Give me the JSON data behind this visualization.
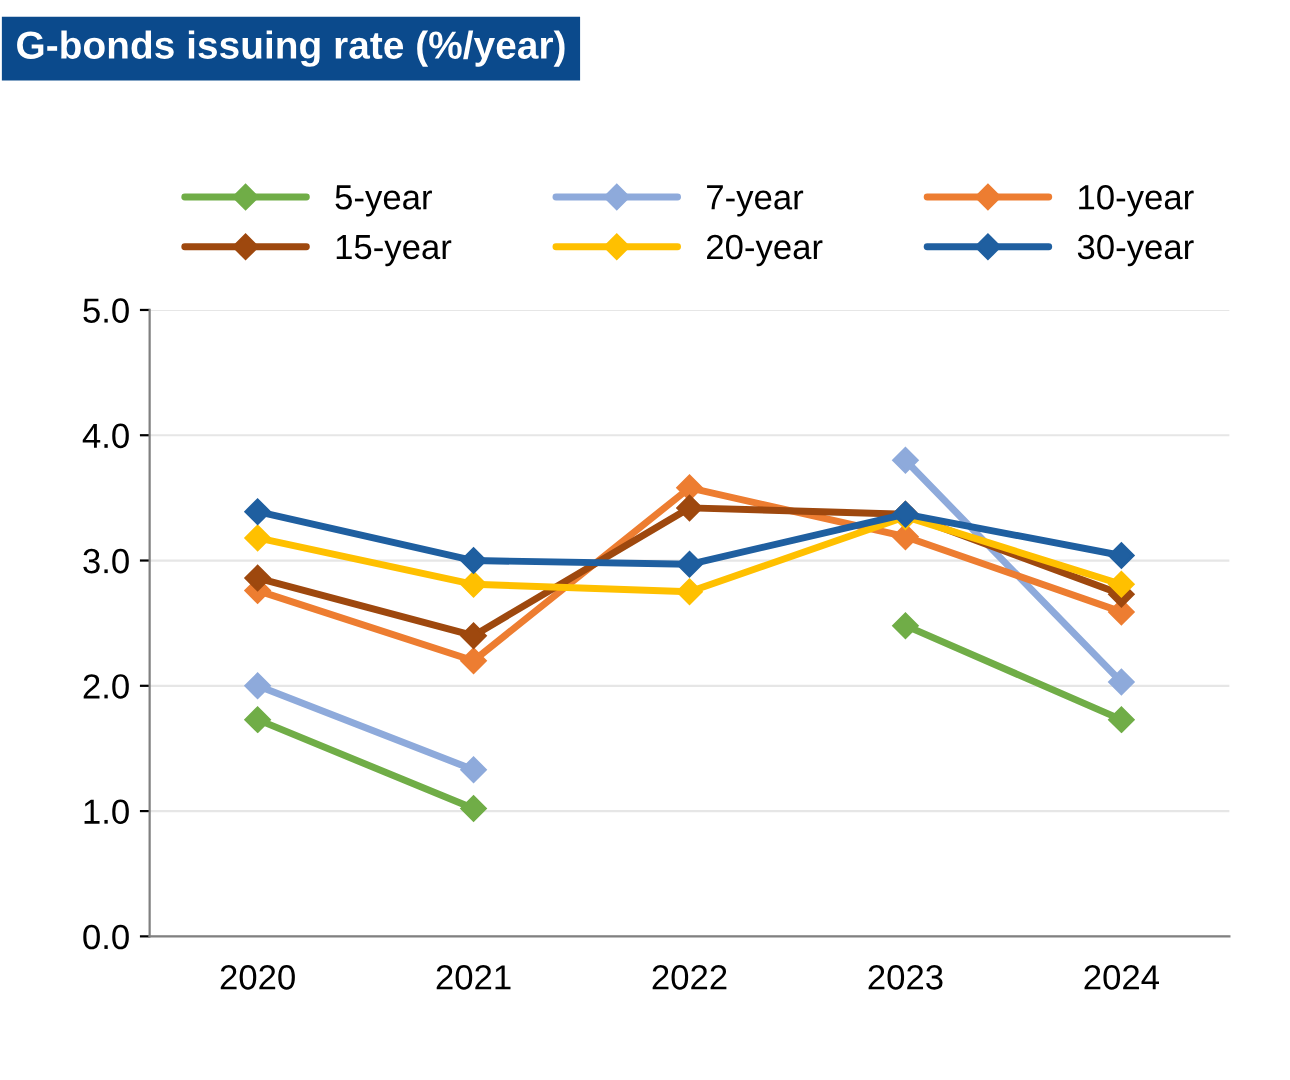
{
  "chart_data": {
    "type": "line",
    "title": "G-bonds issuing rate (%/year)",
    "categories": [
      "2020",
      "2021",
      "2022",
      "2023",
      "2024"
    ],
    "series": [
      {
        "name": "5-year",
        "color": "#70ad47",
        "values": [
          1.73,
          1.02,
          null,
          2.48,
          1.73
        ]
      },
      {
        "name": "7-year",
        "color": "#8eaadb",
        "values": [
          2.0,
          1.33,
          null,
          3.8,
          2.03
        ]
      },
      {
        "name": "10-year",
        "color": "#ed7d31",
        "values": [
          2.76,
          2.2,
          3.58,
          3.19,
          2.59
        ]
      },
      {
        "name": "15-year",
        "color": "#9e480e",
        "values": [
          2.86,
          2.4,
          3.42,
          3.37,
          2.73
        ]
      },
      {
        "name": "20-year",
        "color": "#ffc000",
        "values": [
          3.18,
          2.81,
          2.75,
          3.35,
          2.81
        ]
      },
      {
        "name": "30-year",
        "color": "#1f5fa0",
        "values": [
          3.39,
          3.0,
          2.97,
          3.37,
          3.04
        ]
      }
    ],
    "ylim": [
      0,
      5
    ],
    "yticks": [
      {
        "value": 0,
        "label": "0.0"
      },
      {
        "value": 1,
        "label": "1.0"
      },
      {
        "value": 2,
        "label": "2.0"
      },
      {
        "value": 3,
        "label": "3.0"
      },
      {
        "value": 4,
        "label": "4.0"
      },
      {
        "value": 5,
        "label": "5.0"
      }
    ],
    "grid": "y",
    "legend": "top",
    "marker": "diamond",
    "line_style": "solid"
  }
}
